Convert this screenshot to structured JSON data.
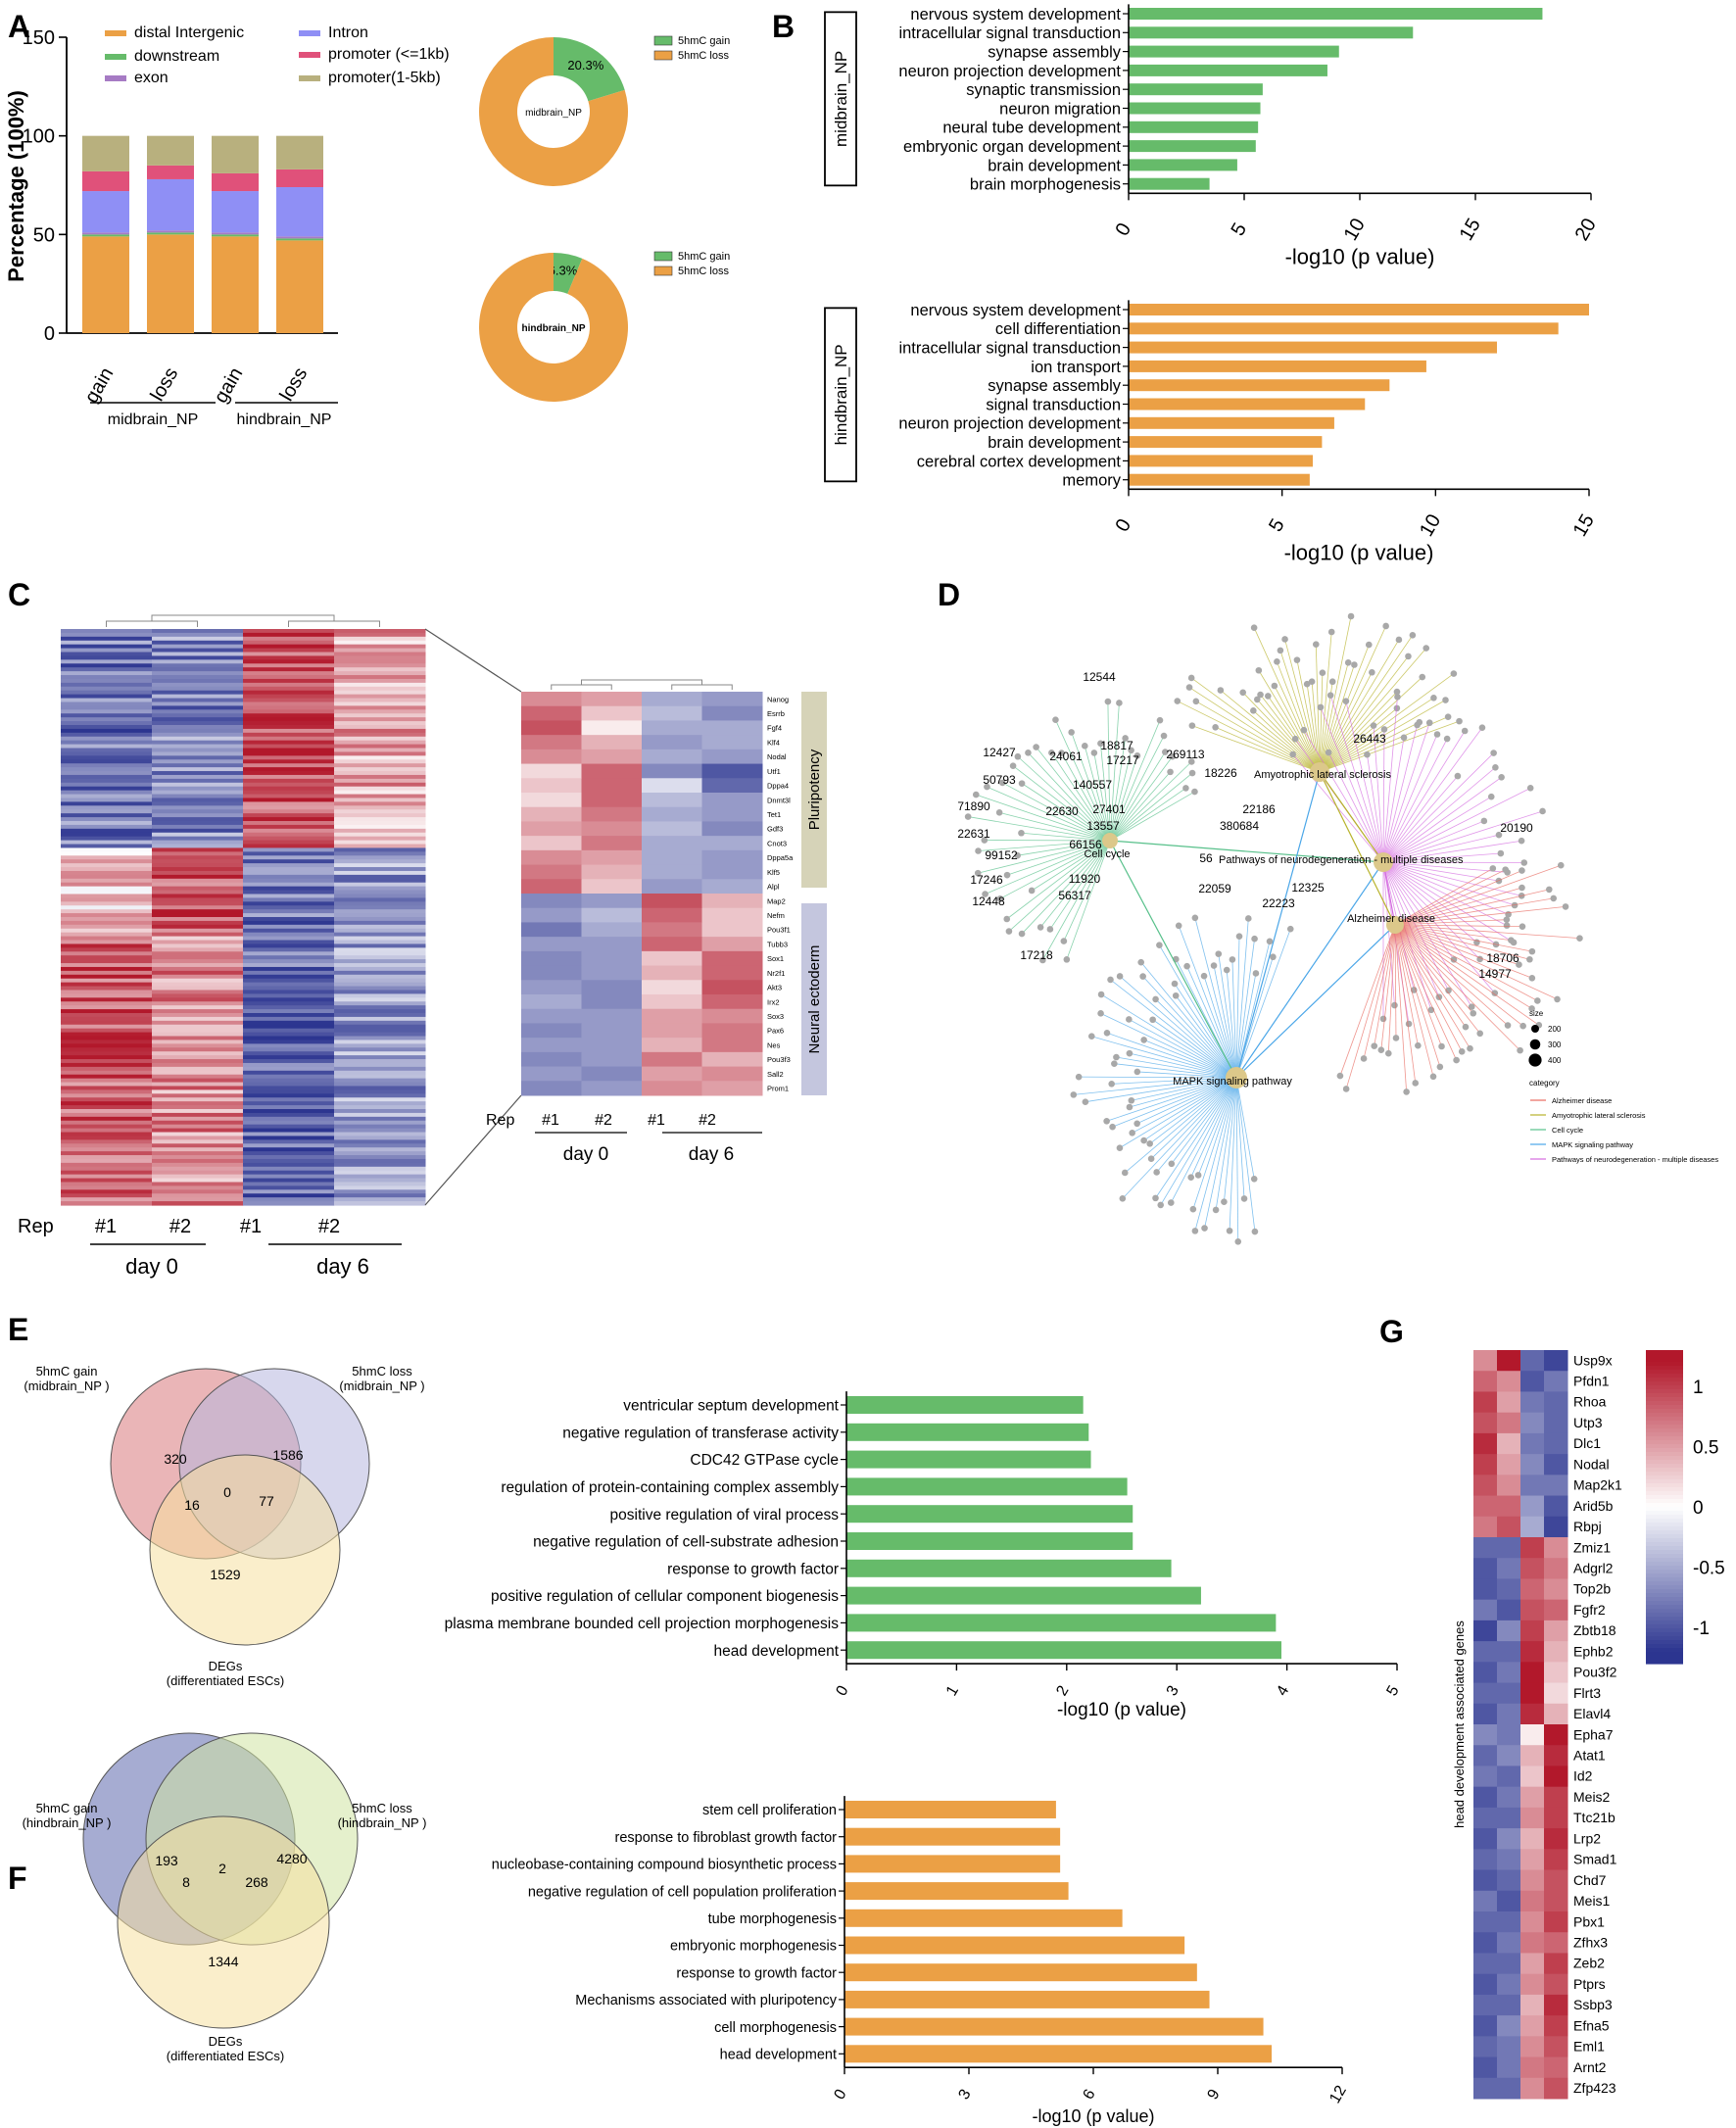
{
  "panel_letters": [
    "A",
    "B",
    "C",
    "D",
    "E",
    "F",
    "G"
  ],
  "colors": {
    "green": "#66bb6a",
    "orange": "#eba045",
    "venn_red": "#d9787c",
    "venn_lilac": "#b7b6df",
    "venn_yellow": "#f5e0a0",
    "venn_navy": "#5d67ad",
    "venn_lime": "#cfe3a3",
    "heat_red": "#b2182b",
    "heat_blue": "#2c3590",
    "gray": "#aaaaaa"
  },
  "chart_data": [
    {
      "id": "A-bar",
      "type": "bar",
      "stacked": true,
      "ylabel": "Percentage (100%)",
      "ylim": [
        0,
        150
      ],
      "yticks": [
        "0",
        "50",
        "100",
        "150"
      ],
      "categories": [
        "gain",
        "loss",
        "gain",
        "loss"
      ],
      "groups": [
        "midbrain_NP",
        "hindbrain_NP"
      ],
      "series": [
        {
          "name": "distal Intergenic",
          "color": "#eba045",
          "values": [
            49,
            50,
            49,
            47
          ]
        },
        {
          "name": "downstream",
          "color": "#66bb6a",
          "values": [
            1,
            1,
            1,
            1
          ]
        },
        {
          "name": "exon",
          "color": "#a67bc4",
          "values": [
            1,
            1,
            1,
            1
          ]
        },
        {
          "name": "Intron",
          "color": "#8f8ff5",
          "values": [
            21,
            26,
            21,
            25
          ]
        },
        {
          "name": "promoter (<=1kb)",
          "color": "#e0517a",
          "values": [
            10,
            7,
            9,
            9
          ]
        },
        {
          "name": "promoter(1-5kb)",
          "color": "#b8b07e",
          "values": [
            18,
            15,
            19,
            17
          ]
        }
      ]
    },
    {
      "id": "A-donut-mid",
      "type": "pie",
      "center_label": "midbrain_NP",
      "slices": [
        {
          "label": "5hmC gain",
          "value": 20.3,
          "color": "#66bb6a",
          "text": "20.3%"
        },
        {
          "label": "5hmC loss",
          "value": 79.7,
          "color": "#eba045"
        }
      ]
    },
    {
      "id": "A-donut-hind",
      "type": "pie",
      "center_label": "hindbrain_NP",
      "slices": [
        {
          "label": "5hmC gain",
          "value": 6.3,
          "color": "#66bb6a",
          "text": "6.3%"
        },
        {
          "label": "5hmC loss",
          "value": 93.7,
          "color": "#eba045"
        }
      ]
    },
    {
      "id": "B-mid",
      "type": "bar",
      "orientation": "horizontal",
      "side_label": "midbrain_NP",
      "xlabel": "-log10 (p value)",
      "xlim": [
        0,
        20
      ],
      "xticks": [
        "0",
        "5",
        "10",
        "15",
        "20"
      ],
      "color": "#66bb6a",
      "categories": [
        "nervous system development",
        "intracellular signal transduction",
        "synapse assembly",
        "neuron projection development",
        "synaptic transmission",
        "neuron migration",
        "neural tube development",
        "embryonic organ development",
        "brain development",
        "brain morphogenesis"
      ],
      "values": [
        17.9,
        12.3,
        9.1,
        8.6,
        5.8,
        5.7,
        5.6,
        5.5,
        4.7,
        3.5
      ]
    },
    {
      "id": "B-hind",
      "type": "bar",
      "orientation": "horizontal",
      "side_label": "hindbrain_NP",
      "xlabel": "-log10 (p value)",
      "xlim": [
        0,
        15
      ],
      "xticks": [
        "0",
        "5",
        "10",
        "15"
      ],
      "color": "#eba045",
      "categories": [
        "nervous system development",
        "cell differentiation",
        "intracellular signal transduction",
        "ion transport",
        "synapse assembly",
        "signal transduction",
        "neuron projection development",
        "brain development",
        "cerebral cortex development",
        "memory"
      ],
      "values": [
        15.0,
        14.0,
        12.0,
        9.7,
        8.5,
        7.7,
        6.7,
        6.3,
        6.0,
        5.9
      ]
    },
    {
      "id": "C-big",
      "type": "heatmap",
      "row_label": "Rep",
      "columns": [
        "#1",
        "#2",
        "#1",
        "#2"
      ],
      "groups": [
        "day 0",
        "day 6"
      ]
    },
    {
      "id": "C-zoom",
      "type": "heatmap",
      "row_label": "Rep",
      "columns": [
        "#1",
        "#2",
        "#1",
        "#2"
      ],
      "groups": [
        "day 0",
        "day 6"
      ],
      "row_groups": [
        "Pluripotency",
        "Neural ectoderm"
      ],
      "rows": [
        "Nanog",
        "Esrrb",
        "Fgf4",
        "Klf4",
        "Nodal",
        "Utf1",
        "Dppa4",
        "Dnmt3l",
        "Tet1",
        "Gdf3",
        "Cnot3",
        "Dppa5a",
        "Klf5",
        "Alpl",
        "Map2",
        "Nefm",
        "Pou3f1",
        "Tubb3",
        "Sox1",
        "Nr2f1",
        "Akt3",
        "Irx2",
        "Sox3",
        "Pax6",
        "Nes",
        "Pou3f3",
        "Sall2",
        "Prom1"
      ],
      "values": [
        [
          0.6,
          0.5,
          -0.5,
          -0.6
        ],
        [
          0.8,
          0.3,
          -0.4,
          -0.7
        ],
        [
          0.9,
          0.1,
          -0.5,
          -0.5
        ],
        [
          0.7,
          0.4,
          -0.6,
          -0.5
        ],
        [
          0.6,
          0.5,
          -0.5,
          -0.6
        ],
        [
          0.2,
          0.8,
          -0.7,
          -1.0
        ],
        [
          0.3,
          0.8,
          -0.2,
          -0.9
        ],
        [
          0.2,
          0.8,
          -0.4,
          -0.6
        ],
        [
          0.4,
          0.7,
          -0.5,
          -0.6
        ],
        [
          0.5,
          0.6,
          -0.4,
          -0.7
        ],
        [
          0.3,
          0.7,
          -0.5,
          -0.5
        ],
        [
          0.6,
          0.5,
          -0.5,
          -0.6
        ],
        [
          0.7,
          0.4,
          -0.5,
          -0.6
        ],
        [
          0.8,
          0.3,
          -0.6,
          -0.5
        ],
        [
          -0.7,
          -0.6,
          0.9,
          0.4
        ],
        [
          -0.6,
          -0.4,
          0.8,
          0.3
        ],
        [
          -0.8,
          -0.5,
          0.7,
          0.3
        ],
        [
          -0.6,
          -0.6,
          0.8,
          0.5
        ],
        [
          -0.7,
          -0.6,
          0.3,
          0.8
        ],
        [
          -0.7,
          -0.6,
          0.4,
          0.8
        ],
        [
          -0.6,
          -0.7,
          0.2,
          0.9
        ],
        [
          -0.5,
          -0.7,
          0.3,
          0.8
        ],
        [
          -0.6,
          -0.6,
          0.5,
          0.6
        ],
        [
          -0.7,
          -0.6,
          0.5,
          0.7
        ],
        [
          -0.6,
          -0.6,
          0.4,
          0.7
        ],
        [
          -0.7,
          -0.6,
          0.7,
          0.4
        ],
        [
          -0.6,
          -0.7,
          0.5,
          0.6
        ],
        [
          -0.7,
          -0.6,
          0.6,
          0.5
        ]
      ]
    },
    {
      "id": "D-network",
      "type": "network",
      "hubs": [
        "Cell cycle",
        "Amyotrophic lateral sclerosis",
        "Pathways of neurodegeneration - multiple diseases",
        "Alzheimer disease",
        "MAPK signaling pathway"
      ],
      "node_labels": [
        "12544",
        "12427",
        "24061",
        "18817",
        "17217",
        "50793",
        "140557",
        "71890",
        "22630",
        "27401",
        "13557",
        "22631",
        "66156",
        "99152",
        "17246",
        "11920",
        "56317",
        "12448",
        "17218",
        "269113",
        "18226",
        "26443",
        "22186",
        "380684",
        "20190",
        "56",
        "22059",
        "12325",
        "22223",
        "18706",
        "14977"
      ],
      "legend_size_title": "size",
      "legend_sizes": [
        "200",
        "300",
        "400"
      ],
      "legend_category_title": "category",
      "legend_categories": [
        {
          "name": "Alzheimer disease",
          "color": "#e8695f"
        },
        {
          "name": "Amyotrophic lateral sclerosis",
          "color": "#b7b22a"
        },
        {
          "name": "Cell cycle",
          "color": "#57c08a"
        },
        {
          "name": "MAPK signaling pathway",
          "color": "#4aa6e8"
        },
        {
          "name": "Pathways of neurodegeneration - multiple diseases",
          "color": "#d46ae0"
        }
      ]
    },
    {
      "id": "E-venn",
      "type": "venn",
      "sets": [
        "5hmC gain\n(midbrain_NP )",
        "5hmC loss\n(midbrain_NP )",
        "DEGs\n(differentiated ESCs)"
      ],
      "label_lines": [
        [
          "5hmC gain",
          "(midbrain_NP )"
        ],
        [
          "5hmC loss",
          "(midbrain_NP )"
        ],
        [
          "DEGs",
          "(differentiated ESCs)"
        ]
      ],
      "counts": {
        "a": "320",
        "b": "1586",
        "c": "1529",
        "ab": "",
        "ac": "16",
        "bc": "77",
        "abc": "0"
      }
    },
    {
      "id": "E-bar",
      "type": "bar",
      "orientation": "horizontal",
      "xlabel": "-log10 (p value)",
      "xlim": [
        0,
        5
      ],
      "xticks": [
        "0",
        "1",
        "2",
        "3",
        "4",
        "5"
      ],
      "color": "#66bb6a",
      "categories": [
        "ventricular septum development",
        "negative regulation of transferase activity",
        "CDC42 GTPase cycle",
        "regulation of protein-containing complex assembly",
        "positive regulation of viral process",
        "negative regulation of cell-substrate adhesion",
        "response to growth factor",
        "positive regulation of cellular component biogenesis",
        "plasma membrane bounded cell projection morphogenesis",
        "head development"
      ],
      "values": [
        2.15,
        2.2,
        2.22,
        2.55,
        2.6,
        2.6,
        2.95,
        3.22,
        3.9,
        3.95
      ]
    },
    {
      "id": "F-venn",
      "type": "venn",
      "sets": [
        "5hmC gain\n(hindbrain_NP )",
        "5hmC loss\n(hindbrain_NP )",
        "DEGs\n(differentiated ESCs)"
      ],
      "label_lines": [
        [
          "5hmC gain",
          "(hindbrain_NP )"
        ],
        [
          "5hmC loss",
          "(hindbrain_NP )"
        ],
        [
          "DEGs",
          "(differentiated ESCs)"
        ]
      ],
      "counts": {
        "a": "193",
        "b": "4280",
        "c": "1344",
        "ab": "",
        "ac": "8",
        "bc": "268",
        "abc": "2"
      }
    },
    {
      "id": "F-bar",
      "type": "bar",
      "orientation": "horizontal",
      "xlabel": "-log10 (p value)",
      "xlim": [
        0,
        12
      ],
      "xticks": [
        "0",
        "3",
        "6",
        "9",
        "12"
      ],
      "color": "#eba045",
      "categories": [
        "stem cell proliferation",
        "response to fibroblast growth factor",
        "nucleobase-containing compound biosynthetic process",
        "negative regulation of cell population proliferation",
        "tube morphogenesis",
        "embryonic morphogenesis",
        "response to growth factor",
        "Mechanisms associated with pluripotency",
        "cell morphogenesis",
        "head development"
      ],
      "values": [
        5.1,
        5.2,
        5.2,
        5.4,
        6.7,
        8.2,
        8.5,
        8.8,
        10.1,
        10.3
      ]
    },
    {
      "id": "G-heat",
      "type": "heatmap",
      "ylabel": "head development associated genes",
      "scale_ticks": [
        "1",
        "0.5",
        "0",
        "-0.5",
        "-1"
      ],
      "scale_range": [
        -1.3,
        1.3
      ],
      "rows": [
        "Usp9x",
        "Pfdn1",
        "Rhoa",
        "Utp3",
        "Dlc1",
        "Nodal",
        "Map2k1",
        "Arid5b",
        "Rbpj",
        "Zmiz1",
        "Adgrl2",
        "Top2b",
        "Fgfr2",
        "Zbtb18",
        "Ephb2",
        "Pou3f2",
        "Flrt3",
        "Elavl4",
        "Epha7",
        "Atat1",
        "Id2",
        "Meis2",
        "Ttc21b",
        "Lrp2",
        "Smad1",
        "Chd7",
        "Meis1",
        "Pbx1",
        "Zfhx3",
        "Zeb2",
        "Ptprs",
        "Ssbp3",
        "Efna5",
        "Eml1",
        "Arnt2",
        "Zfp423"
      ],
      "values": [
        [
          0.6,
          1.2,
          -0.9,
          -1.1
        ],
        [
          0.8,
          0.6,
          -1.0,
          -0.8
        ],
        [
          1.0,
          0.5,
          -0.8,
          -0.9
        ],
        [
          0.9,
          0.7,
          -0.7,
          -0.9
        ],
        [
          1.1,
          0.4,
          -0.8,
          -0.9
        ],
        [
          1.0,
          0.5,
          -0.7,
          -1.0
        ],
        [
          0.9,
          0.6,
          -0.8,
          -0.8
        ],
        [
          0.8,
          0.8,
          -0.6,
          -1.0
        ],
        [
          0.7,
          0.9,
          -0.5,
          -1.1
        ],
        [
          -0.9,
          -0.9,
          1.0,
          0.6
        ],
        [
          -1.0,
          -0.8,
          0.9,
          0.7
        ],
        [
          -1.0,
          -0.9,
          0.8,
          0.6
        ],
        [
          -0.8,
          -1.0,
          0.9,
          0.8
        ],
        [
          -1.1,
          -0.7,
          1.0,
          0.5
        ],
        [
          -0.9,
          -0.9,
          1.1,
          0.4
        ],
        [
          -1.0,
          -0.8,
          1.2,
          0.3
        ],
        [
          -0.9,
          -0.9,
          1.2,
          0.2
        ],
        [
          -1.0,
          -0.8,
          1.1,
          0.4
        ],
        [
          -0.7,
          -0.8,
          0.1,
          1.2
        ],
        [
          -0.9,
          -0.7,
          0.4,
          1.1
        ],
        [
          -0.8,
          -0.9,
          0.3,
          1.2
        ],
        [
          -1.0,
          -0.8,
          0.5,
          1.0
        ],
        [
          -0.9,
          -0.9,
          0.6,
          1.0
        ],
        [
          -1.0,
          -0.7,
          0.4,
          1.1
        ],
        [
          -0.9,
          -0.8,
          0.5,
          1.0
        ],
        [
          -1.0,
          -0.9,
          0.6,
          0.9
        ],
        [
          -0.8,
          -1.0,
          0.7,
          0.9
        ],
        [
          -0.9,
          -0.9,
          0.6,
          1.0
        ],
        [
          -1.0,
          -0.8,
          0.7,
          0.8
        ],
        [
          -0.9,
          -0.9,
          0.5,
          1.0
        ],
        [
          -1.0,
          -0.8,
          0.6,
          0.9
        ],
        [
          -0.9,
          -0.9,
          0.4,
          1.1
        ],
        [
          -1.0,
          -0.7,
          0.5,
          1.0
        ],
        [
          -0.9,
          -0.8,
          0.6,
          0.9
        ],
        [
          -1.0,
          -0.8,
          0.7,
          0.8
        ],
        [
          -0.9,
          -0.9,
          0.6,
          0.9
        ]
      ]
    }
  ]
}
